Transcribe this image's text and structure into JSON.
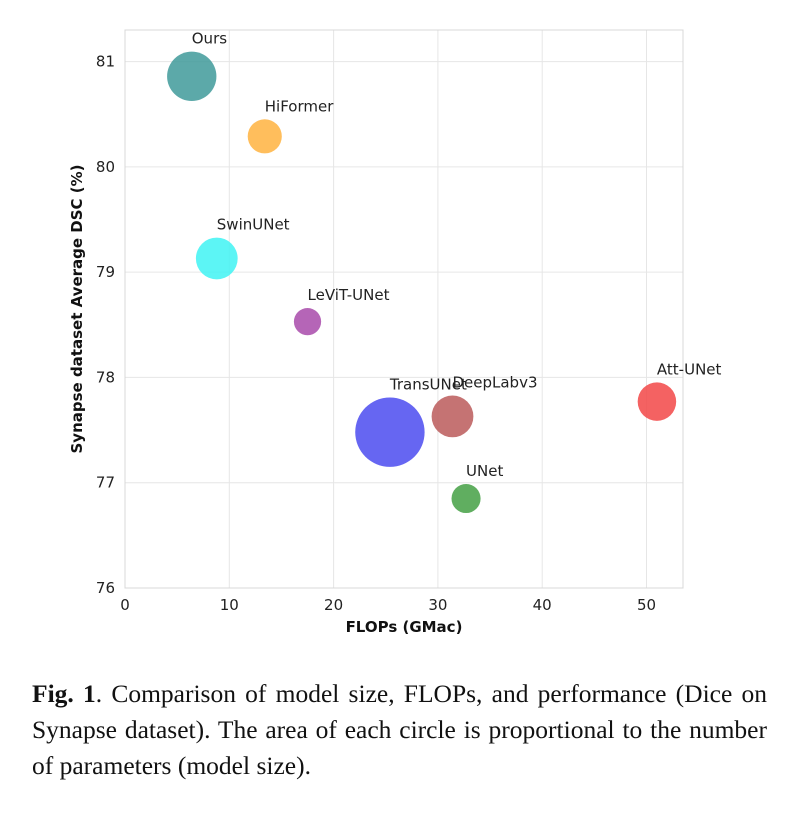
{
  "chart_data": {
    "type": "scatter",
    "xlabel": "FLOPs (GMac)",
    "ylabel": "Synapse dataset Average DSC (%)",
    "xlim": [
      0,
      53.5
    ],
    "ylim": [
      76,
      81.3
    ],
    "xticks": [
      0,
      10,
      20,
      30,
      40,
      50
    ],
    "yticks": [
      76,
      77,
      78,
      79,
      80,
      81
    ],
    "grid": true,
    "points": [
      {
        "label": "Ours",
        "x": 6.4,
        "y": 80.86,
        "size": 4.6,
        "color": "#3f9a9a"
      },
      {
        "label": "HiFormer",
        "x": 13.4,
        "y": 80.29,
        "size": 2.2,
        "color": "#ffb340"
      },
      {
        "label": "SwinUNet",
        "x": 8.8,
        "y": 79.13,
        "size": 3.3,
        "color": "#3ff3f3"
      },
      {
        "label": "LeViT-UNet",
        "x": 17.5,
        "y": 78.53,
        "size": 1.4,
        "color": "#a84aaa"
      },
      {
        "label": "TransUNet",
        "x": 25.4,
        "y": 77.48,
        "size": 9.1,
        "color": "#4b4bf0"
      },
      {
        "label": "DeepLabv3",
        "x": 31.4,
        "y": 77.63,
        "size": 3.3,
        "color": "#bb5b5b"
      },
      {
        "label": "Att-UNet",
        "x": 51.0,
        "y": 77.77,
        "size": 2.8,
        "color": "#f24646"
      },
      {
        "label": "UNet",
        "x": 32.7,
        "y": 76.85,
        "size": 1.6,
        "color": "#44a044"
      }
    ]
  },
  "caption": {
    "fig_label": "Fig. 1",
    "text": ". Comparison of model size, FLOPs, and performance (Dice on Synapse dataset). The area of each circle is proportional to the number of parameters (model size)."
  }
}
